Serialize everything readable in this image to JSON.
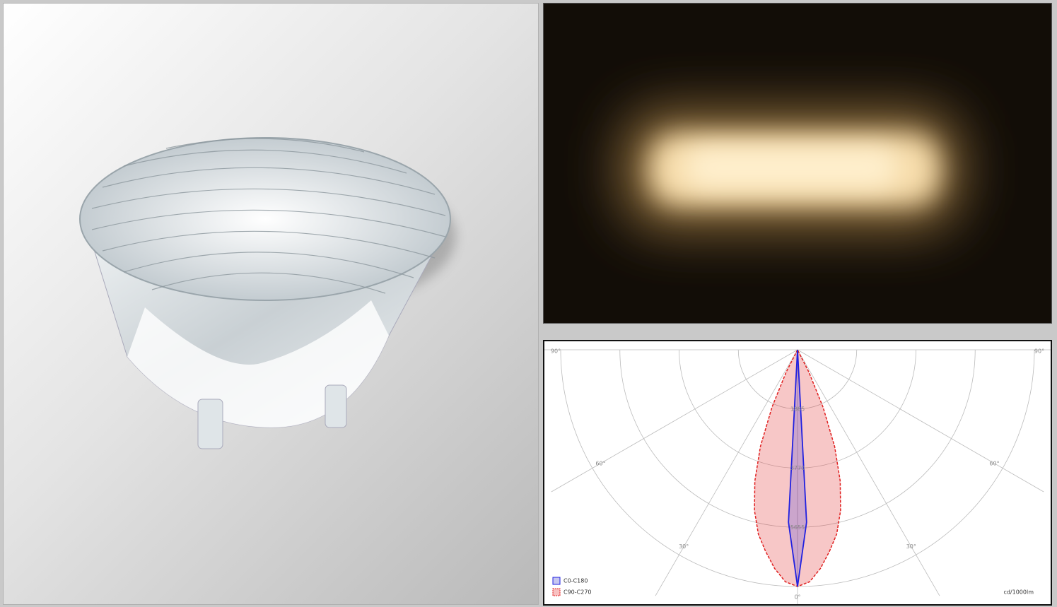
{
  "chart_data": {
    "type": "polar",
    "theta": [
      -30,
      -27,
      -24,
      -21,
      -18,
      -15,
      -12,
      -9,
      -6,
      -3,
      0,
      3,
      6,
      9,
      12,
      15,
      18,
      21,
      24,
      27,
      30
    ],
    "series": [
      {
        "name": "C0-C180",
        "color": "#2020e0",
        "values": [
          0,
          0,
          0,
          0,
          0,
          0,
          0,
          0,
          0,
          5500,
          7540,
          5500,
          0,
          0,
          0,
          0,
          0,
          0,
          0,
          0,
          0
        ]
      },
      {
        "name": "C90-C270",
        "color": "#e02020",
        "values": [
          0,
          800,
          2000,
          3300,
          4400,
          5300,
          6000,
          6500,
          7000,
          7400,
          7540,
          7400,
          7000,
          6500,
          6000,
          5300,
          4400,
          3300,
          2000,
          800,
          0
        ]
      }
    ],
    "rlim": [
      0,
      7540
    ],
    "rticks": [
      1885,
      3770,
      5655
    ],
    "thetaticks": [
      {
        "value": -90,
        "label": "90°"
      },
      {
        "value": -60,
        "label": "60°"
      },
      {
        "value": -30,
        "label": "30°"
      },
      {
        "value": 0,
        "label": "0°"
      },
      {
        "value": 30,
        "label": "30°"
      },
      {
        "value": 60,
        "label": "60°"
      },
      {
        "value": 90,
        "label": "90°"
      }
    ],
    "unit": "cd/1000lm",
    "grid": true
  }
}
